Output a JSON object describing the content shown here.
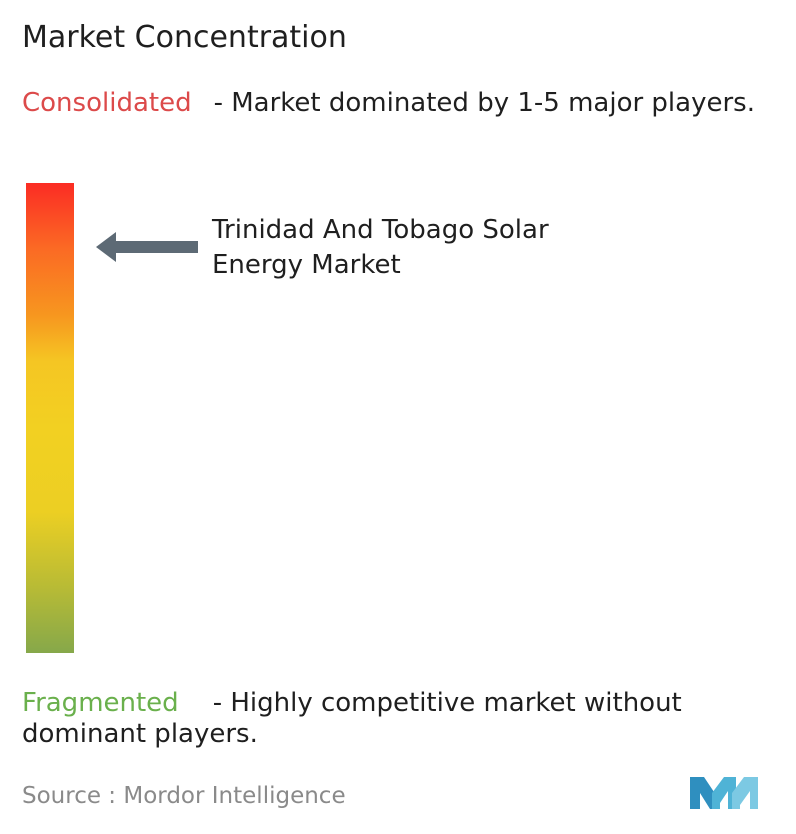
{
  "title": "Market Concentration",
  "consolidated": {
    "term": "Consolidated",
    "description": "- Market dominated by 1-5 major players.",
    "color": "#dc4a4a"
  },
  "fragmented": {
    "term": "Fragmented",
    "description": "- Highly competitive market without dominant players.",
    "color": "#6ab04c"
  },
  "scale": {
    "colors_top_to_bottom": [
      "#fb2c24",
      "#f7961f",
      "#f2d022",
      "#86a84a"
    ]
  },
  "market": {
    "label": "Trinidad And Tobago Solar Energy Market",
    "concentration_level": 0.88
  },
  "source": {
    "text": "Source :  Mordor Intelligence"
  },
  "logo": {
    "icon": "mordor-intelligence-logo-icon",
    "color": "#4fb3d6"
  }
}
